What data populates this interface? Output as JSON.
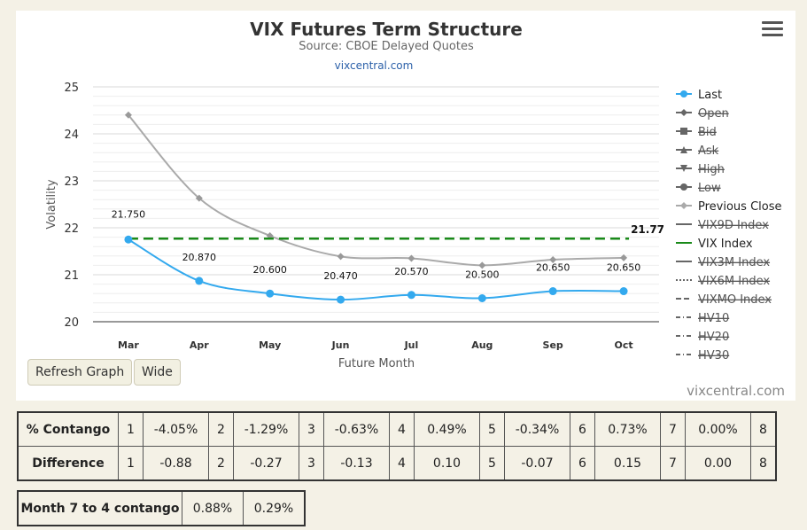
{
  "header": {
    "title": "VIX Futures Term Structure",
    "subtitle": "Source: CBOE Delayed Quotes",
    "site_link": "vixcentral.com"
  },
  "controls": {
    "refresh_label": "Refresh Graph",
    "wide_label": "Wide",
    "menu_icon": "hamburger-menu-icon",
    "credit": "vixcentral.com"
  },
  "chart_data": {
    "type": "line",
    "ylabel": "Volatility",
    "xlabel": "Future Month",
    "ylim": [
      20,
      25
    ],
    "yticks": [
      25,
      24,
      23,
      22,
      21,
      20
    ],
    "categories": [
      "Mar",
      "Apr",
      "May",
      "Jun",
      "Jul",
      "Aug",
      "Sep",
      "Oct"
    ],
    "grid": true,
    "series": [
      {
        "name": "Last",
        "color": "#33a9ee",
        "marker": "circle",
        "values": [
          21.75,
          20.87,
          20.6,
          20.47,
          20.57,
          20.5,
          20.65,
          20.65
        ],
        "labels": [
          "21.750",
          "20.870",
          "20.600",
          "20.470",
          "20.570",
          "20.500",
          "20.650",
          "20.650"
        ]
      },
      {
        "name": "Previous Close",
        "color": "#aaaaaa",
        "marker": "diamond",
        "values": [
          24.4,
          22.63,
          21.83,
          21.39,
          21.35,
          21.2,
          21.32,
          21.36
        ]
      },
      {
        "name": "VIX Index",
        "color": "#198a19",
        "dash": true,
        "value": 21.77,
        "label": "21.77"
      }
    ],
    "legend": {
      "position": "right",
      "items": [
        {
          "label": "Last",
          "symbol": "circle",
          "color": "#33a9ee",
          "hidden": false
        },
        {
          "label": "Open",
          "symbol": "diamond",
          "color": "#666666",
          "hidden": true
        },
        {
          "label": "Bid",
          "symbol": "square",
          "color": "#666666",
          "hidden": true
        },
        {
          "label": "Ask",
          "symbol": "triangle",
          "color": "#666666",
          "hidden": true
        },
        {
          "label": "High",
          "symbol": "triangle-down",
          "color": "#666666",
          "hidden": true
        },
        {
          "label": "Low",
          "symbol": "circle",
          "color": "#666666",
          "hidden": true
        },
        {
          "label": "Previous Close",
          "symbol": "diamond",
          "color": "#aaaaaa",
          "hidden": false
        },
        {
          "label": "VIX9D Index",
          "symbol": "line",
          "color": "#666666",
          "hidden": true
        },
        {
          "label": "VIX Index",
          "symbol": "line",
          "color": "#198a19",
          "hidden": false
        },
        {
          "label": "VIX3M Index",
          "symbol": "line",
          "color": "#666666",
          "hidden": true
        },
        {
          "label": "VIX6M Index",
          "symbol": "dot",
          "color": "#666666",
          "hidden": true
        },
        {
          "label": "VIXMO Index",
          "symbol": "dash",
          "color": "#666666",
          "hidden": true
        },
        {
          "label": "HV10",
          "symbol": "dashdot",
          "color": "#666666",
          "hidden": true
        },
        {
          "label": "HV20",
          "symbol": "dashdot",
          "color": "#666666",
          "hidden": true
        },
        {
          "label": "HV30",
          "symbol": "dashdot",
          "color": "#666666",
          "hidden": true
        }
      ]
    }
  },
  "contango_table": {
    "rows": [
      {
        "label": "% Contango",
        "cells": [
          [
            "1",
            "-4.05%"
          ],
          [
            "2",
            "-1.29%"
          ],
          [
            "3",
            "-0.63%"
          ],
          [
            "4",
            "0.49%"
          ],
          [
            "5",
            "-0.34%"
          ],
          [
            "6",
            "0.73%"
          ],
          [
            "7",
            "0.00%"
          ],
          [
            "8",
            ""
          ]
        ]
      },
      {
        "label": "Difference",
        "cells": [
          [
            "1",
            "-0.88"
          ],
          [
            "2",
            "-0.27"
          ],
          [
            "3",
            "-0.13"
          ],
          [
            "4",
            "0.10"
          ],
          [
            "5",
            "-0.07"
          ],
          [
            "6",
            "0.15"
          ],
          [
            "7",
            "0.00"
          ],
          [
            "8",
            ""
          ]
        ]
      }
    ]
  },
  "summary_table": {
    "label": "Month 7 to 4 contango",
    "values": [
      "0.88%",
      "0.29%"
    ]
  }
}
